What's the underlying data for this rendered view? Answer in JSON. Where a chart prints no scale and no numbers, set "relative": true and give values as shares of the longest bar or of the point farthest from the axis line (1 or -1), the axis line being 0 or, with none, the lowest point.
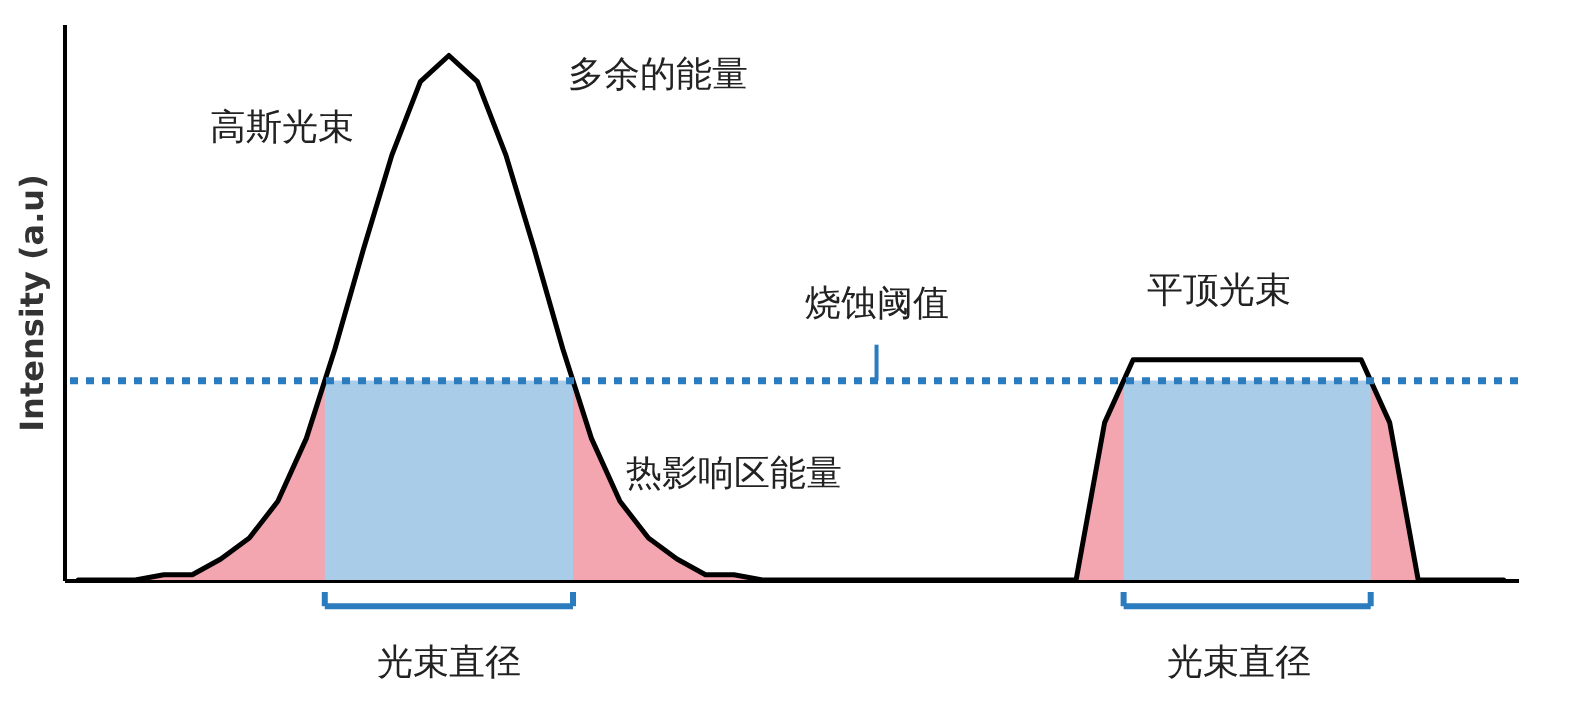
{
  "chart_data": {
    "type": "line",
    "relative": true,
    "ylabel": "Intensity (a.u)",
    "marker": "none",
    "line_style": "solid",
    "categories": [
      null,
      null,
      null,
      null,
      null,
      null,
      null,
      null,
      null,
      null,
      null,
      null,
      null,
      null,
      null,
      null,
      null,
      null,
      null,
      null,
      null,
      null,
      null,
      null,
      null,
      null,
      null,
      null,
      null,
      null,
      null,
      null,
      null,
      null,
      null,
      null,
      null,
      null,
      null,
      null,
      null,
      null,
      null,
      null,
      null,
      null,
      null,
      null,
      null,
      null,
      null
    ],
    "series": [
      {
        "color": "#000000",
        "values": [
          0,
          0,
          0,
          0.01,
          0.01,
          0.04,
          0.08,
          0.15,
          0.27,
          0.44,
          0.63,
          0.81,
          0.95,
          1,
          0.95,
          0.81,
          0.63,
          0.44,
          0.27,
          0.15,
          0.08,
          0.04,
          0.01,
          0.01,
          0,
          0,
          0,
          0,
          0,
          0,
          0,
          0,
          0,
          0,
          0,
          0,
          0.3,
          0.42,
          0.42,
          0.42,
          0.42,
          0.42,
          0.42,
          0.42,
          0.42,
          0.42,
          0.3,
          0,
          0,
          0,
          0
        ]
      }
    ],
    "ref_lines": [
      {
        "axis": "y",
        "value": 0.38,
        "label": "烧蚀阈值",
        "color": "#2b7bbf",
        "line_style": "dotted"
      }
    ],
    "annotations": [
      "高斯光束",
      "多余的能量",
      "热影响区能量",
      "平顶光束",
      "光束直径",
      "光束直径"
    ]
  }
}
